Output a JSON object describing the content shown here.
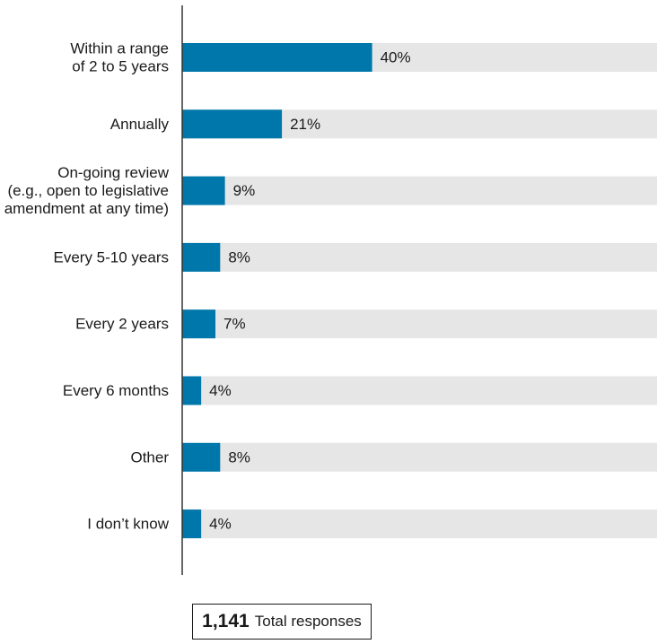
{
  "chart_data": {
    "type": "bar",
    "orientation": "horizontal",
    "categories": [
      [
        "Within a range",
        "of 2 to 5 years"
      ],
      [
        "Annually"
      ],
      [
        "On-going review",
        "(e.g., open to legislative",
        "amendment at any time)"
      ],
      [
        "Every 5-10 years"
      ],
      [
        "Every 2 years"
      ],
      [
        "Every 6 months"
      ],
      [
        "Other"
      ],
      [
        "I don’t know"
      ]
    ],
    "values": [
      40,
      21,
      9,
      8,
      7,
      4,
      8,
      4
    ],
    "value_labels": [
      "40%",
      "21%",
      "9%",
      "8%",
      "7%",
      "4%",
      "8%",
      "4%"
    ],
    "xlim": [
      0,
      100
    ],
    "grid": false,
    "legend": "none",
    "colors": {
      "bar": "#0077aa",
      "track": "#e6e6e6",
      "axis": "#333333"
    }
  },
  "footer": {
    "total_count": "1,141",
    "total_label": "Total responses"
  }
}
